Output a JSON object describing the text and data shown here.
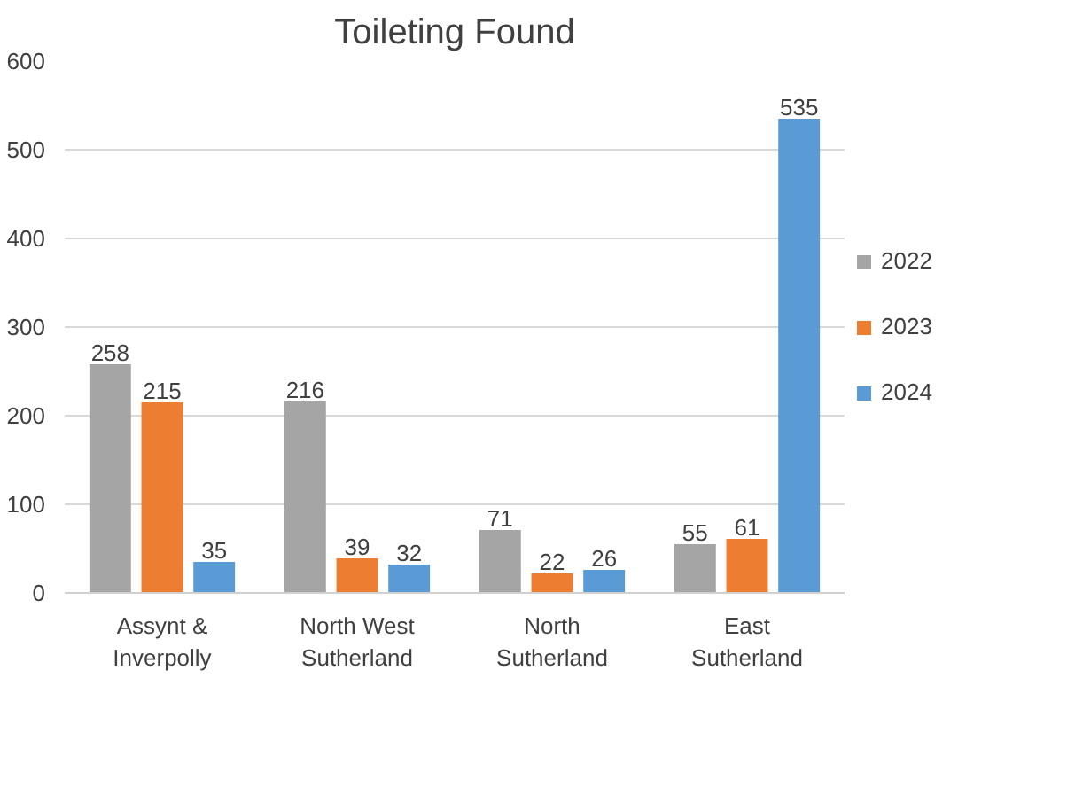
{
  "chart_data": {
    "type": "bar",
    "title": "Toileting Found",
    "categories": [
      "Assynt &\nInverpolly",
      "North West\nSutherland",
      "North\nSutherland",
      "East\nSutherland"
    ],
    "series": [
      {
        "name": "2022",
        "color": "#a5a5a5",
        "values": [
          258,
          216,
          71,
          55
        ]
      },
      {
        "name": "2023",
        "color": "#ed7d31",
        "values": [
          215,
          39,
          22,
          61
        ]
      },
      {
        "name": "2024",
        "color": "#5b9bd5",
        "values": [
          35,
          32,
          26,
          535
        ]
      }
    ],
    "ylim": [
      0,
      600
    ],
    "yticks": [
      0,
      100,
      200,
      300,
      400,
      500,
      600
    ],
    "grid": "y",
    "legend": "right",
    "data_labels": true
  }
}
